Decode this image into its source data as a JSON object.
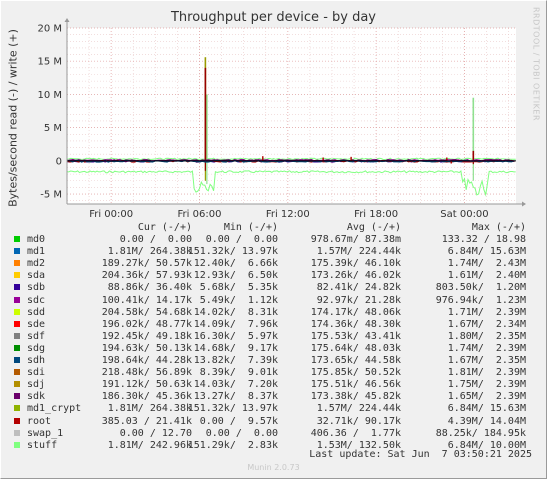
{
  "title": "Throughput per device - by day",
  "watermark": "RRDTOOL / TOBI OETIKER",
  "footer": {
    "last_update": "Last update: Sat Jun  7 03:50:21 2025",
    "version": "Munin 2.0.73"
  },
  "chart_data": {
    "type": "line",
    "title": "Throughput per device - by day",
    "ylabel": "Bytes/second read (-) / write (+)",
    "xlabel": "",
    "ylim": [
      -6500000,
      20000000
    ],
    "y_ticks": [
      {
        "value": 20000000,
        "label": "20 M"
      },
      {
        "value": 15000000,
        "label": "15 M"
      },
      {
        "value": 10000000,
        "label": "10 M"
      },
      {
        "value": 5000000,
        "label": "5 M"
      },
      {
        "value": 0,
        "label": "0"
      },
      {
        "value": -5000000,
        "label": "-5 M"
      }
    ],
    "x_ticks": [
      {
        "hours": 3,
        "label": "Fri 00:00"
      },
      {
        "hours": 9,
        "label": "Fri 06:00"
      },
      {
        "hours": 15,
        "label": "Fri 12:00"
      },
      {
        "hours": 21,
        "label": "Fri 18:00"
      },
      {
        "hours": 27,
        "label": "Sat 00:00"
      }
    ],
    "grid": true,
    "series_peaks": [
      {
        "name": "stuff",
        "color": "#8fe08f",
        "peaks": [
          {
            "hours": 9.5,
            "write": 10000000,
            "read": -3500000
          },
          {
            "hours": 27.6,
            "write": 9500000,
            "read": -3000000
          }
        ]
      },
      {
        "name": "md1_crypt",
        "color": "#9a9a00",
        "peaks": [
          {
            "hours": 9.4,
            "write": 15600000,
            "read": -3000000
          }
        ]
      },
      {
        "name": "root",
        "color": "#990000",
        "peaks": [
          {
            "hours": 9.4,
            "write": 14000000,
            "read": -1500000
          },
          {
            "hours": 27.6,
            "write": 1500000,
            "read": -500000
          }
        ]
      }
    ]
  },
  "legend": {
    "headers": {
      "cur": "Cur (-/+)",
      "min": "Min (-/+)",
      "avg": "Avg (-/+)",
      "max": "Max (-/+)"
    },
    "rows": [
      {
        "name": "md0",
        "color": "#00cc00",
        "cur": "0.00 /  0.00",
        "min": "0.00 /  0.00",
        "avg": "978.67m/ 87.38m",
        "max": "133.32 / 18.98"
      },
      {
        "name": "md1",
        "color": "#0066b3",
        "cur": "1.81M/ 264.38k",
        "min": "151.32k/ 13.97k",
        "avg": "1.57M/ 224.44k",
        "max": "6.84M/ 15.63M"
      },
      {
        "name": "md2",
        "color": "#ff8000",
        "cur": "189.27k/ 50.57k",
        "min": "12.40k/  6.66k",
        "avg": "175.39k/ 46.10k",
        "max": "1.74M/  2.43M"
      },
      {
        "name": "sda",
        "color": "#ffcc00",
        "cur": "204.36k/ 57.93k",
        "min": "12.93k/  6.50k",
        "avg": "173.26k/ 46.02k",
        "max": "1.61M/  2.40M"
      },
      {
        "name": "sdb",
        "color": "#330099",
        "cur": "88.86k/ 36.40k",
        "min": "5.68k/  5.35k",
        "avg": "82.41k/ 24.82k",
        "max": "803.50k/  1.20M"
      },
      {
        "name": "sdc",
        "color": "#990099",
        "cur": "100.41k/ 14.17k",
        "min": "5.49k/  1.12k",
        "avg": "92.97k/ 21.28k",
        "max": "976.94k/  1.23M"
      },
      {
        "name": "sdd",
        "color": "#ccff00",
        "cur": "204.58k/ 54.68k",
        "min": "14.02k/  8.31k",
        "avg": "174.17k/ 48.06k",
        "max": "1.71M/  2.39M"
      },
      {
        "name": "sde",
        "color": "#ff0000",
        "cur": "196.02k/ 48.77k",
        "min": "14.09k/  7.96k",
        "avg": "174.36k/ 48.30k",
        "max": "1.67M/  2.34M"
      },
      {
        "name": "sdf",
        "color": "#808080",
        "cur": "192.45k/ 49.18k",
        "min": "16.30k/  5.97k",
        "avg": "175.53k/ 43.41k",
        "max": "1.80M/  2.35M"
      },
      {
        "name": "sdg",
        "color": "#008f00",
        "cur": "194.63k/ 50.13k",
        "min": "14.68k/  9.17k",
        "avg": "175.64k/ 48.03k",
        "max": "1.74M/  2.39M"
      },
      {
        "name": "sdh",
        "color": "#00487d",
        "cur": "198.64k/ 44.28k",
        "min": "13.82k/  7.39k",
        "avg": "173.65k/ 44.58k",
        "max": "1.67M/  2.35M"
      },
      {
        "name": "sdi",
        "color": "#b35a00",
        "cur": "218.48k/ 56.89k",
        "min": "8.39k/  9.01k",
        "avg": "175.85k/ 50.52k",
        "max": "1.81M/  2.39M"
      },
      {
        "name": "sdj",
        "color": "#b38f00",
        "cur": "191.12k/ 50.63k",
        "min": "14.03k/  7.20k",
        "avg": "175.51k/ 46.56k",
        "max": "1.75M/  2.39M"
      },
      {
        "name": "sdk",
        "color": "#6b006b",
        "cur": "186.30k/ 45.36k",
        "min": "13.27k/  8.37k",
        "avg": "173.38k/ 45.82k",
        "max": "1.65M/  2.39M"
      },
      {
        "name": "md1_crypt",
        "color": "#8fb300",
        "cur": "1.81M/ 264.38k",
        "min": "151.32k/ 13.97k",
        "avg": "1.57M/ 224.44k",
        "max": "6.84M/ 15.63M"
      },
      {
        "name": "root",
        "color": "#b30000",
        "cur": "385.03 / 21.41k",
        "min": "0.00 /  9.57k",
        "avg": "32.71k/ 90.17k",
        "max": "4.39M/ 14.04M"
      },
      {
        "name": "swap_1",
        "color": "#bebebe",
        "cur": "0.00 / 12.70",
        "min": "0.00 /  0.00",
        "avg": "406.36 /  1.77k",
        "max": "88.25k/ 184.95k"
      },
      {
        "name": "stuff",
        "color": "#80ff80",
        "cur": "1.81M/ 242.96k",
        "min": "151.29k/  2.83k",
        "avg": "1.53M/ 132.50k",
        "max": "6.84M/ 10.00M"
      }
    ]
  }
}
